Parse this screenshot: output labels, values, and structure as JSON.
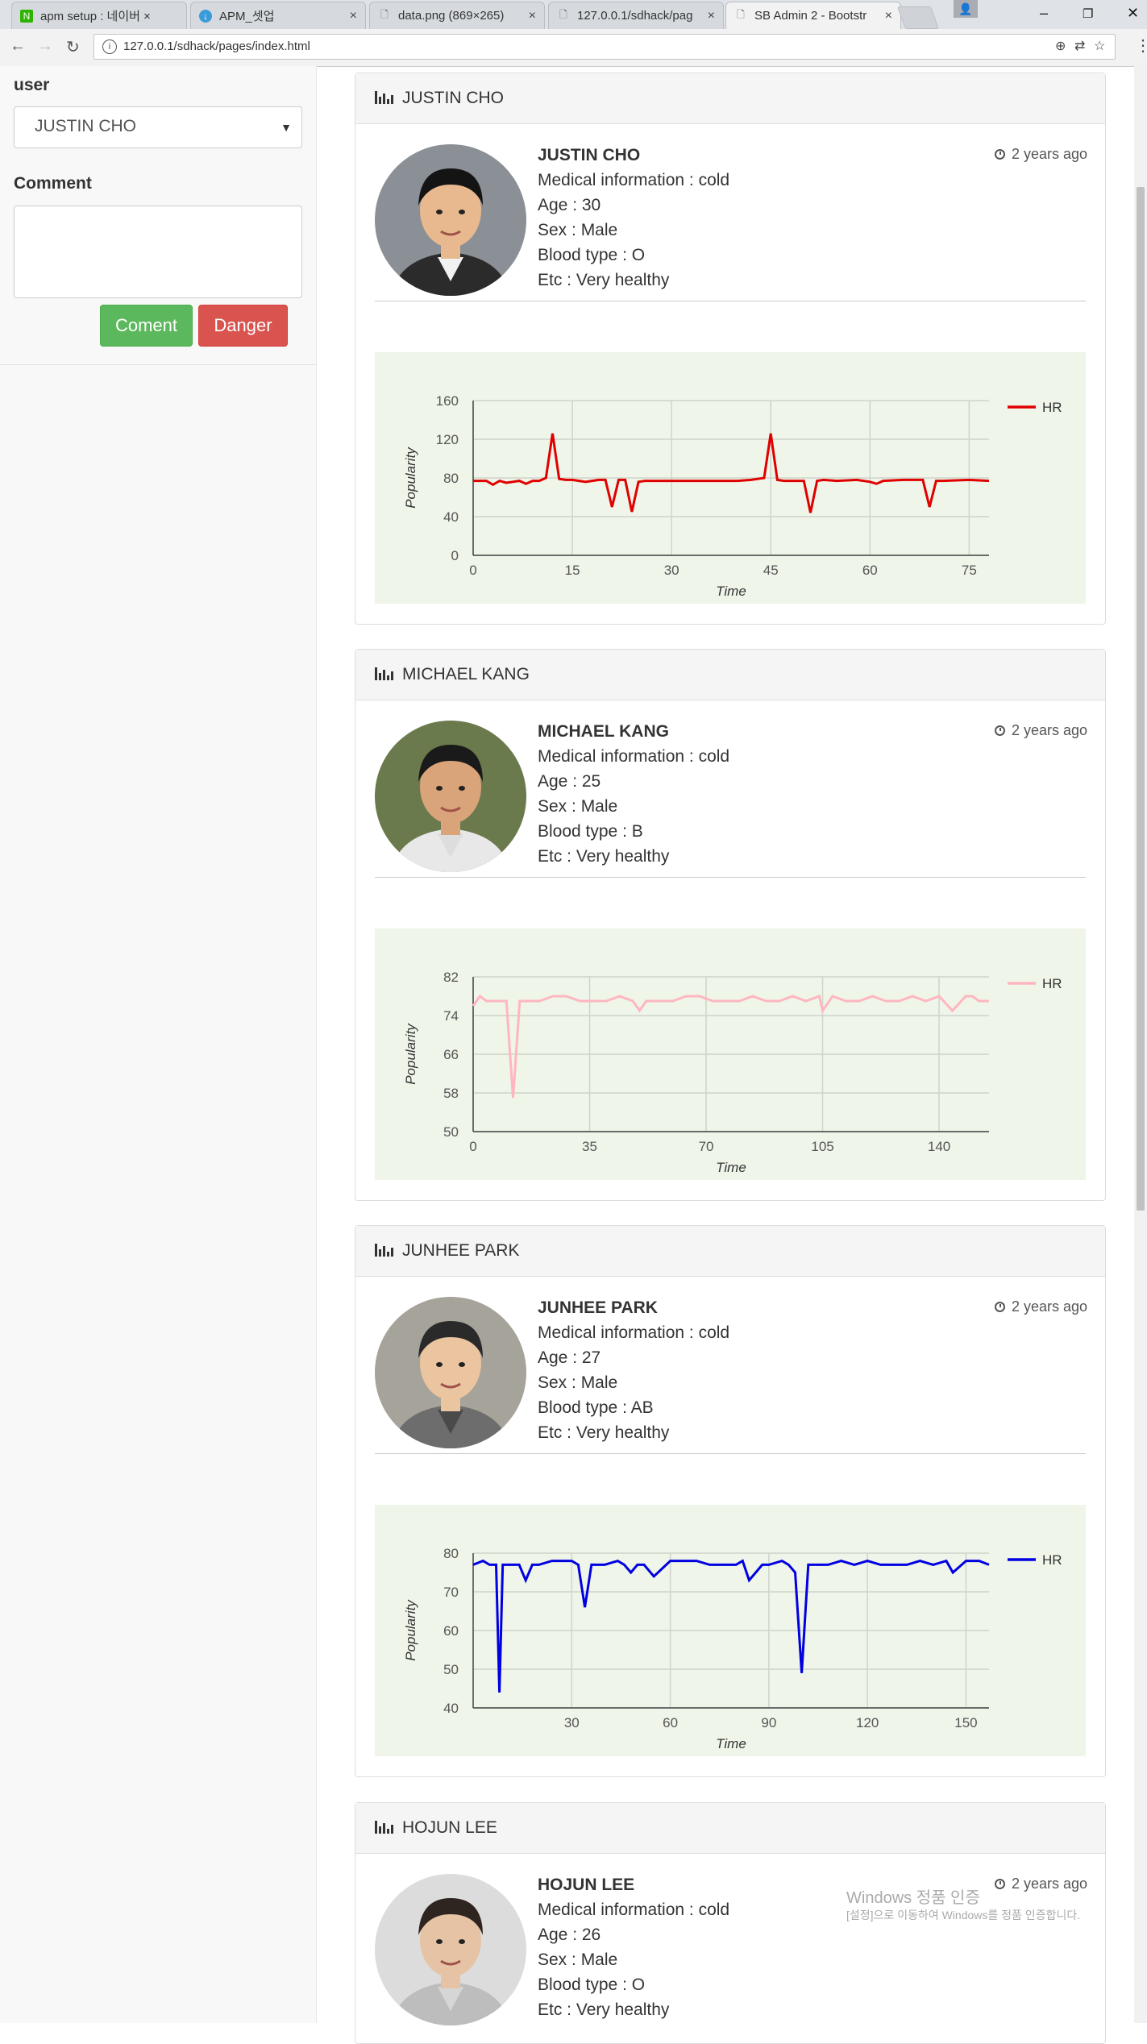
{
  "browser": {
    "tabs": [
      {
        "title": "apm setup : 네이버 ×",
        "color": "#2db400",
        "glyph": "N"
      },
      {
        "title": "APM_셋업",
        "color": "#3a9bd9",
        "glyph": "↓"
      },
      {
        "title": "data.png (869×265)",
        "color": "",
        "glyph": "🗋"
      },
      {
        "title": "127.0.0.1/sdhack/pag",
        "color": "",
        "glyph": "🗋"
      },
      {
        "title": "SB Admin 2 - Bootstr",
        "color": "",
        "glyph": "🗋"
      }
    ],
    "url": "127.0.0.1/sdhack/pages/index.html",
    "win_min": "–",
    "win_max": "❐",
    "win_close": "✕"
  },
  "sidebar": {
    "user_label": "user",
    "user_selected": "JUSTIN CHO",
    "comment_label": "Comment",
    "comment_value": "",
    "coment_button": "Coment",
    "danger_button": "Danger"
  },
  "patients": [
    {
      "heading": "JUSTIN CHO",
      "name": "JUSTIN CHO",
      "medical": "Medical information : cold",
      "age": "Age : 30",
      "sex": "Sex : Male",
      "blood": "Blood type : O",
      "etc": "Etc : Very healthy",
      "ago": "2 years ago"
    },
    {
      "heading": "MICHAEL KANG",
      "name": "MICHAEL KANG",
      "medical": "Medical information : cold",
      "age": "Age : 25",
      "sex": "Sex : Male",
      "blood": "Blood type : B",
      "etc": "Etc : Very healthy",
      "ago": "2 years ago"
    },
    {
      "heading": "JUNHEE PARK",
      "name": "JUNHEE PARK",
      "medical": "Medical information : cold",
      "age": "Age : 27",
      "sex": "Sex : Male",
      "blood": "Blood type : AB",
      "etc": "Etc : Very healthy",
      "ago": "2 years ago"
    },
    {
      "heading": "HOJUN LEE",
      "name": "HOJUN LEE",
      "medical": "Medical information : cold",
      "age": "Age : 26",
      "sex": "Sex : Male",
      "blood": "Blood type : O",
      "etc": "Etc : Very healthy",
      "ago": "2 years ago"
    }
  ],
  "chart_data": [
    {
      "type": "line",
      "xlabel": "Time",
      "ylabel": "Popularity",
      "ylim": [
        0,
        160
      ],
      "xlim": [
        0,
        78
      ],
      "xticks": [
        0,
        15,
        30,
        45,
        60,
        75
      ],
      "yticks": [
        0,
        40,
        80,
        120,
        160
      ],
      "grid": true,
      "legend_position": "top-right",
      "series": [
        {
          "name": "HR",
          "color": "#e00000",
          "x": [
            0,
            2,
            3,
            4,
            5,
            6,
            7,
            8,
            9,
            10,
            11,
            12,
            13,
            14,
            15,
            16,
            17,
            18,
            19,
            20,
            21,
            22,
            23,
            24,
            25,
            26,
            30,
            35,
            40,
            42,
            43,
            44,
            45,
            46,
            47,
            50,
            51,
            52,
            53,
            55,
            58,
            60,
            61,
            62,
            65,
            68,
            69,
            70,
            71,
            75,
            78
          ],
          "values": [
            77,
            77,
            73,
            77,
            75,
            76,
            77,
            74,
            77,
            77,
            80,
            126,
            79,
            78,
            78,
            77,
            76,
            77,
            78,
            78,
            50,
            78,
            78,
            45,
            76,
            77,
            77,
            77,
            77,
            78,
            79,
            80,
            126,
            78,
            77,
            77,
            44,
            77,
            78,
            77,
            78,
            76,
            74,
            77,
            78,
            78,
            50,
            77,
            77,
            78,
            77
          ]
        }
      ]
    },
    {
      "type": "line",
      "xlabel": "Time",
      "ylabel": "Popularity",
      "ylim": [
        50,
        82
      ],
      "xlim": [
        0,
        155
      ],
      "xticks": [
        0,
        35,
        70,
        105,
        140
      ],
      "yticks": [
        50,
        58,
        66,
        74,
        82
      ],
      "grid": true,
      "legend_position": "top-right",
      "series": [
        {
          "name": "HR",
          "color": "#ffb6c1",
          "x": [
            0,
            2,
            4,
            6,
            8,
            10,
            12,
            14,
            16,
            20,
            24,
            28,
            32,
            36,
            40,
            44,
            48,
            50,
            52,
            56,
            60,
            64,
            68,
            72,
            76,
            80,
            84,
            88,
            92,
            96,
            100,
            104,
            105,
            108,
            112,
            116,
            120,
            124,
            128,
            132,
            136,
            140,
            144,
            148,
            150,
            152,
            155
          ],
          "values": [
            76,
            78,
            77,
            77,
            77,
            77,
            57,
            77,
            77,
            77,
            78,
            78,
            77,
            77,
            77,
            78,
            77,
            75,
            77,
            77,
            77,
            78,
            78,
            77,
            77,
            77,
            78,
            77,
            77,
            78,
            77,
            78,
            75,
            78,
            77,
            77,
            78,
            77,
            77,
            78,
            77,
            78,
            75,
            78,
            78,
            77,
            77
          ]
        }
      ]
    },
    {
      "type": "line",
      "xlabel": "Time",
      "ylabel": "Popularity",
      "ylim": [
        40,
        80
      ],
      "xlim": [
        0,
        157
      ],
      "xticks": [
        30,
        60,
        90,
        120,
        150
      ],
      "yticks": [
        40,
        50,
        60,
        70,
        80
      ],
      "grid": true,
      "legend_position": "top-right",
      "series": [
        {
          "name": "HR",
          "color": "#0000e0",
          "x": [
            0,
            3,
            5,
            7,
            8,
            9,
            12,
            14,
            16,
            18,
            20,
            24,
            28,
            30,
            32,
            34,
            36,
            40,
            44,
            46,
            48,
            50,
            52,
            55,
            60,
            64,
            68,
            72,
            80,
            82,
            84,
            86,
            88,
            90,
            94,
            96,
            98,
            100,
            102,
            104,
            108,
            112,
            116,
            120,
            124,
            128,
            132,
            136,
            140,
            144,
            146,
            150,
            154,
            157
          ],
          "values": [
            77,
            78,
            77,
            77,
            44,
            77,
            77,
            77,
            73,
            77,
            77,
            78,
            78,
            78,
            77,
            66,
            77,
            77,
            78,
            77,
            75,
            77,
            77,
            74,
            78,
            78,
            78,
            77,
            77,
            78,
            73,
            75,
            77,
            77,
            78,
            77,
            75,
            49,
            77,
            77,
            77,
            78,
            77,
            78,
            77,
            77,
            77,
            78,
            77,
            78,
            75,
            78,
            78,
            77
          ]
        }
      ]
    }
  ],
  "watermark": {
    "line1": "Windows 정품 인증",
    "line2": "[설정]으로 이동하여 Windows를 정품 인증합니다."
  }
}
